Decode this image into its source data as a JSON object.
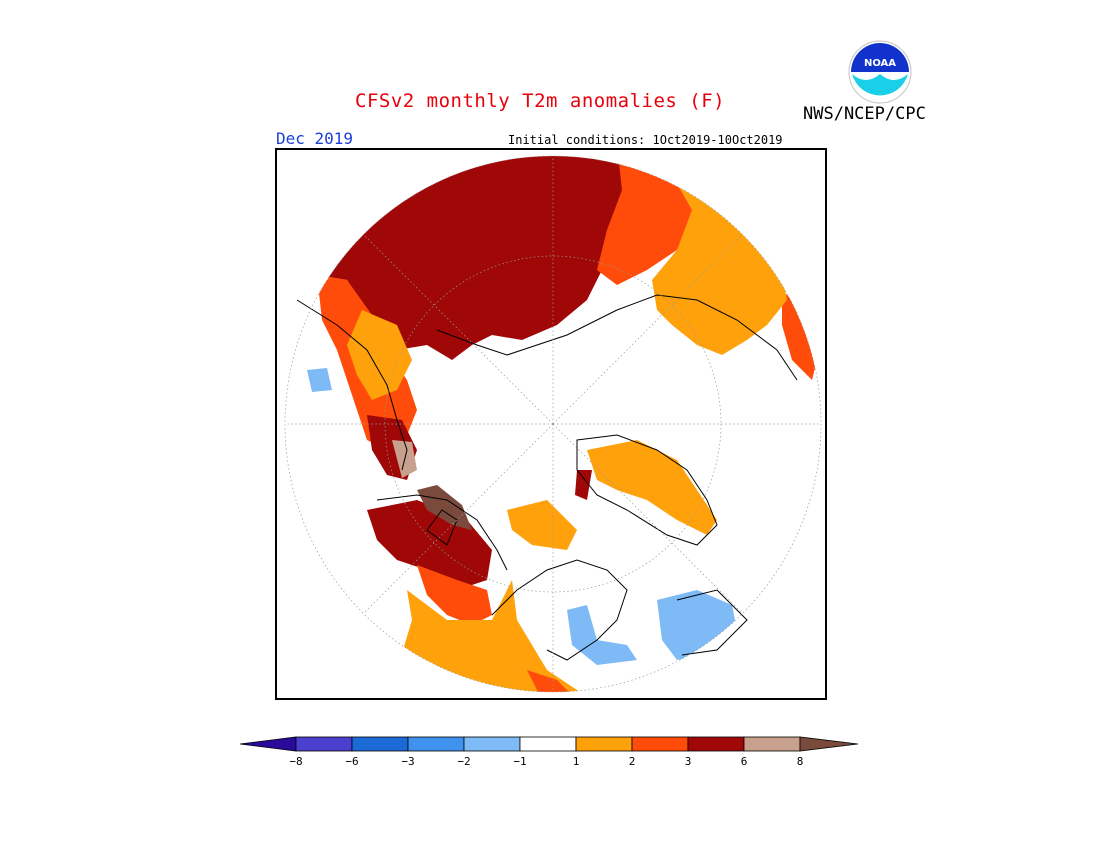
{
  "header": {
    "title": "CFSv2 monthly T2m anomalies (F)",
    "org": "NWS/NCEP/CPC",
    "logo_text": "NOAA",
    "month": "Dec 2019",
    "initial_conditions": "Initial conditions: 1Oct2019-10Oct2019"
  },
  "colorbar": {
    "colors": [
      "#2a0a9a",
      "#4a3fcf",
      "#1b6ad6",
      "#3f92ee",
      "#7ebaf6",
      "#ffffff",
      "#ffa10a",
      "#ff4c0a",
      "#a00808",
      "#c8a08e",
      "#7a4a3c"
    ],
    "ticks": [
      "−8",
      "−6",
      "−3",
      "−2",
      "−1",
      "1",
      "2",
      "3",
      "6",
      "8"
    ]
  },
  "colors": {
    "title": "#e8000b",
    "month": "#1a3fd8",
    "strong_warm": "#a00808",
    "warm": "#ff4c0a",
    "mild_warm": "#ffa10a",
    "cool": "#7ebaf6",
    "extreme_warm": "#c8a08e"
  }
}
